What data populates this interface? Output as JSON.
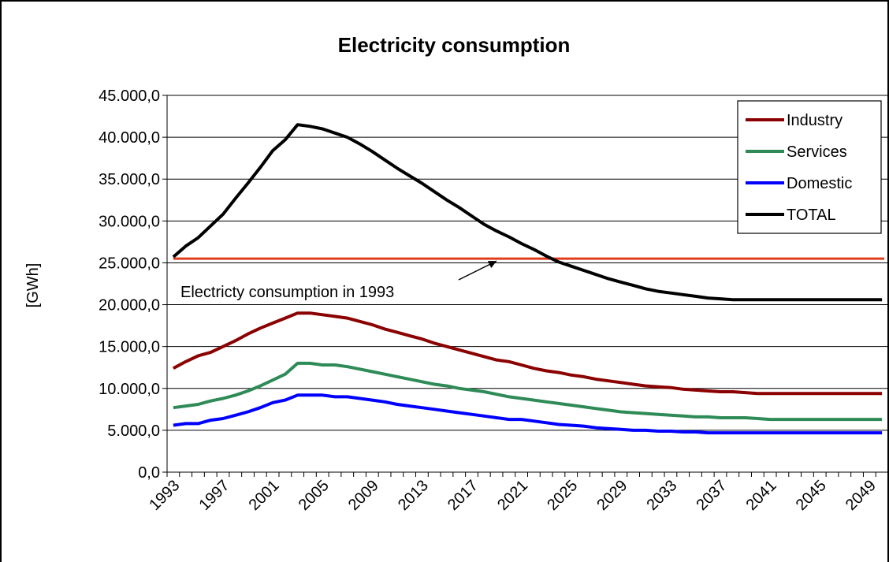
{
  "chart_data": {
    "type": "line",
    "title": "Electricity consumption",
    "xlabel": "",
    "ylabel": "[GWh]",
    "ylim": [
      0,
      45000
    ],
    "ytick_labels": [
      "0,0",
      "5.000,0",
      "10.000,0",
      "15.000,0",
      "20.000,0",
      "25.000,0",
      "30.000,0",
      "35.000,0",
      "40.000,0",
      "45.000,0"
    ],
    "x_start": 1993,
    "x_end": 2050,
    "xtick_labels": [
      "1993",
      "1997",
      "2001",
      "2005",
      "2009",
      "2013",
      "2017",
      "2021",
      "2025",
      "2029",
      "2033",
      "2037",
      "2041",
      "2045",
      "2049"
    ],
    "grid": true,
    "legend_position": "top-right",
    "series": [
      {
        "name": "Industry",
        "color": "#8b0000",
        "values": [
          12400,
          13200,
          13900,
          14300,
          15000,
          15700,
          16500,
          17200,
          17800,
          18400,
          19000,
          19000,
          18800,
          18600,
          18400,
          18000,
          17600,
          17100,
          16700,
          16300,
          15900,
          15400,
          15000,
          14600,
          14200,
          13800,
          13400,
          13200,
          12800,
          12400,
          12100,
          11900,
          11600,
          11400,
          11100,
          10900,
          10700,
          10500,
          10300,
          10200,
          10100,
          9900,
          9800,
          9700,
          9600,
          9600,
          9500,
          9400,
          9400,
          9400,
          9400,
          9400,
          9400,
          9400,
          9400,
          9400,
          9400,
          9400
        ]
      },
      {
        "name": "Services",
        "color": "#2e8b57",
        "values": [
          7700,
          7900,
          8100,
          8500,
          8800,
          9200,
          9700,
          10300,
          11000,
          11700,
          13000,
          13000,
          12800,
          12800,
          12600,
          12300,
          12000,
          11700,
          11400,
          11100,
          10800,
          10500,
          10300,
          10000,
          9800,
          9600,
          9300,
          9000,
          8800,
          8600,
          8400,
          8200,
          8000,
          7800,
          7600,
          7400,
          7200,
          7100,
          7000,
          6900,
          6800,
          6700,
          6600,
          6600,
          6500,
          6500,
          6500,
          6400,
          6300,
          6300,
          6300,
          6300,
          6300,
          6300,
          6300,
          6300,
          6300,
          6300
        ]
      },
      {
        "name": "Domestic",
        "color": "#0000ff",
        "values": [
          5600,
          5800,
          5800,
          6200,
          6400,
          6800,
          7200,
          7700,
          8300,
          8600,
          9200,
          9200,
          9200,
          9000,
          9000,
          8800,
          8600,
          8400,
          8100,
          7900,
          7700,
          7500,
          7300,
          7100,
          6900,
          6700,
          6500,
          6300,
          6300,
          6100,
          5900,
          5700,
          5600,
          5500,
          5300,
          5200,
          5100,
          5000,
          5000,
          4900,
          4900,
          4800,
          4800,
          4700,
          4700,
          4700,
          4700,
          4700,
          4700,
          4700,
          4700,
          4700,
          4700,
          4700,
          4700,
          4700,
          4700,
          4700
        ]
      },
      {
        "name": "TOTAL",
        "color": "#000000",
        "values": [
          25700,
          27000,
          28000,
          29400,
          30800,
          32700,
          34500,
          36400,
          38400,
          39700,
          41500,
          41300,
          41000,
          40500,
          40000,
          39200,
          38300,
          37300,
          36300,
          35400,
          34500,
          33500,
          32500,
          31600,
          30600,
          29600,
          28800,
          28100,
          27300,
          26600,
          25800,
          25100,
          24600,
          24100,
          23600,
          23100,
          22700,
          22300,
          21900,
          21600,
          21400,
          21200,
          21000,
          20800,
          20700,
          20600,
          20600,
          20600,
          20600,
          20600,
          20600,
          20600,
          20600,
          20600,
          20600,
          20600,
          20600,
          20600
        ]
      }
    ],
    "reference_line": {
      "value": 25500,
      "color": "#e03c1e"
    },
    "annotation": {
      "text": "Electricty consumption in 1993",
      "arrow_to_year": 2019
    }
  }
}
